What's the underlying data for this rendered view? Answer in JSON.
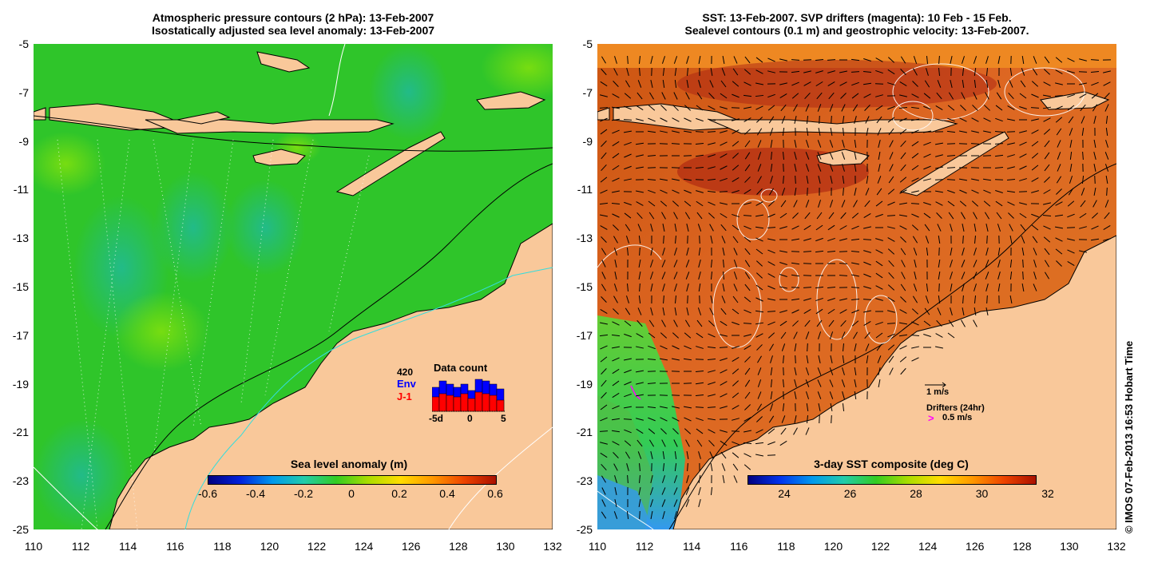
{
  "left_panel": {
    "title_line1": "Atmospheric pressure contours (2 hPa): 13-Feb-2007",
    "title_line2": "Isostatically adjusted sea level anomaly: 13-Feb-2007",
    "colorbar": {
      "label": "Sea level anomaly (m)",
      "ticks": [
        "-0.6",
        "-0.4",
        "-0.2",
        "0",
        "0.2",
        "0.4",
        "0.6"
      ]
    },
    "inset": {
      "title": "Data count",
      "max_label": "420",
      "env_label": "Env",
      "j1_label": "J-1",
      "x_ticks": [
        "-5d",
        "0",
        "5"
      ],
      "env_color": "#0000ff",
      "j1_color": "#ff0000"
    }
  },
  "right_panel": {
    "title_line1": "SST: 13-Feb-2007. SVP drifters (magenta): 10 Feb - 15 Feb.",
    "title_line2": "Sealevel contours (0.1 m) and geostrophic velocity: 13-Feb-2007.",
    "colorbar": {
      "label": "3-day SST composite (deg C)",
      "ticks": [
        "24",
        "26",
        "28",
        "30",
        "32"
      ]
    },
    "velocity_key": "1 m/s",
    "drifters_label": "Drifters (24hr)",
    "drifters_key": "0.5 m/s",
    "drifter_color": "#ff00ff"
  },
  "axes": {
    "lat_ticks": [
      "-5",
      "-7",
      "-9",
      "-11",
      "-13",
      "-15",
      "-17",
      "-19",
      "-21",
      "-23",
      "-25"
    ],
    "lon_ticks": [
      "110",
      "112",
      "114",
      "116",
      "118",
      "120",
      "122",
      "124",
      "126",
      "128",
      "130",
      "132"
    ]
  },
  "colors": {
    "land": "#f9c89a",
    "sea_left": "#33cc22",
    "sea_right": "#dd7722"
  },
  "copyright": "© IMOS 07-Feb-2013 16:53 Hobart Time"
}
